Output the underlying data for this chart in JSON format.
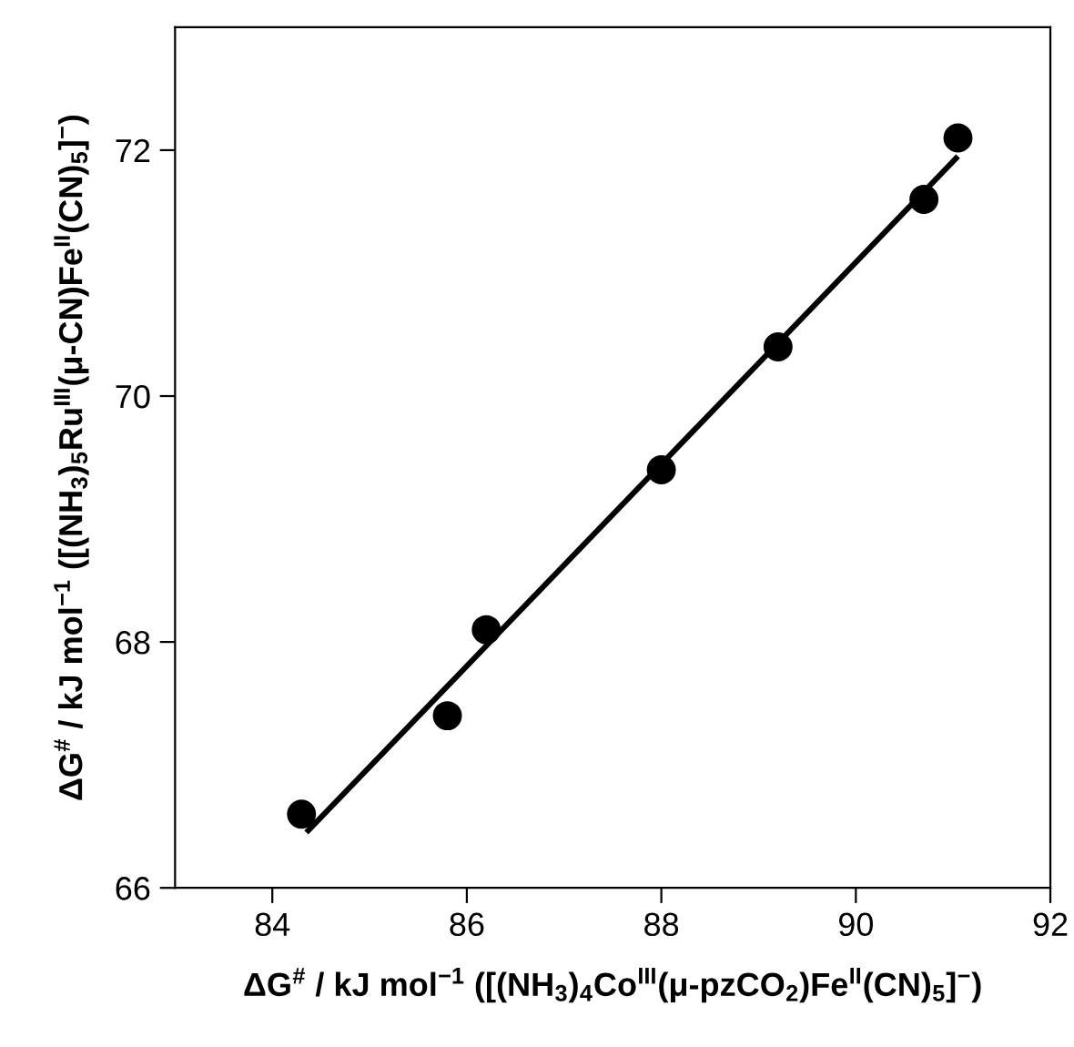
{
  "chart_data": {
    "type": "scatter",
    "xlabel": "ΔG$^{#}$ / kJ mol$^{−1}$ ([(NH$_{3}$)$_{4}$Co$^{III}$(μ-pzCO$_{2}$)Fe$^{II}$(CN)$_{5}$]$^{−}$)",
    "ylabel": "ΔG$^{#}$ / kJ mol$^{−1}$ ([(NH$_{3}$)$_{5}$Ru$^{III}$(μ-CN)Fe$^{II}$(CN)$_{5}$]$^{−}$)",
    "series": [
      {
        "color": "#000000",
        "x": [
          84.3,
          85.8,
          86.2,
          88.0,
          89.2,
          90.7,
          91.05
        ],
        "values": [
          66.6,
          67.4,
          68.1,
          69.4,
          70.4,
          71.6,
          72.1
        ],
        "marker": "circle"
      },
      {
        "type": "line",
        "color": "#000000",
        "x": [
          84.35,
          91.05
        ],
        "values": [
          66.45,
          71.95
        ],
        "line_style": "solid"
      }
    ],
    "xlim": [
      83,
      92
    ],
    "ylim": [
      66,
      73
    ],
    "xticks": [
      84,
      86,
      88,
      90,
      92
    ],
    "yticks": [
      66,
      68,
      70,
      72
    ],
    "grid": false,
    "legend": false
  }
}
